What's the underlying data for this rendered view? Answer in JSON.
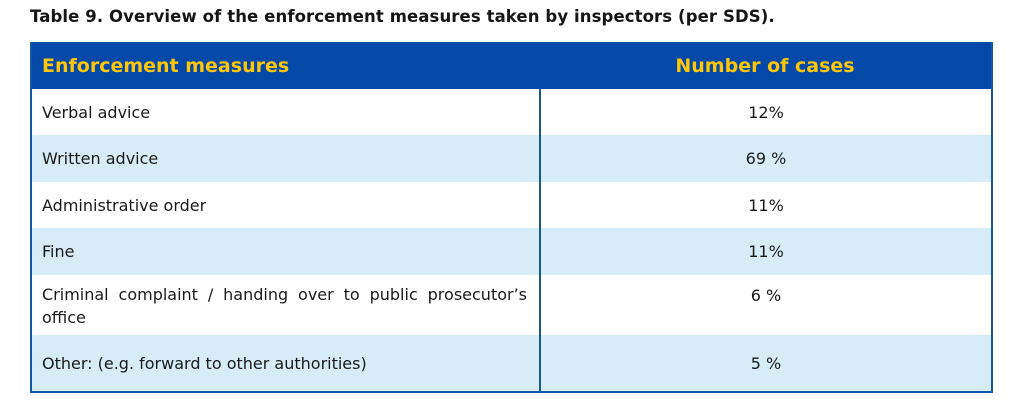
{
  "page": {
    "title": "Table 9. Overview of the enforcement measures taken by inspectors (per SDS)."
  },
  "table": {
    "headers": {
      "measures": "Enforcement measures",
      "cases": "Number of cases"
    },
    "rows": [
      {
        "measure": "Verbal advice",
        "value": "12%"
      },
      {
        "measure": "Written advice",
        "value": "69 %"
      },
      {
        "measure": "Administrative order",
        "value": "11%"
      },
      {
        "measure": "Fine",
        "value": "11%"
      },
      {
        "measure": "Criminal complaint / handing over to public prosecutor’s office",
        "value": "6 %"
      },
      {
        "measure": "Other: (e.g. forward to other authorities)",
        "value": "5 %"
      }
    ],
    "colors": {
      "header_bg": "#0549A8",
      "header_text": "#FDC608",
      "row_alt_bg": "#D6ECF7",
      "outer_border": "#1357A5",
      "column_divider": "#155B8A",
      "body_text": "#1a1a1a"
    }
  }
}
